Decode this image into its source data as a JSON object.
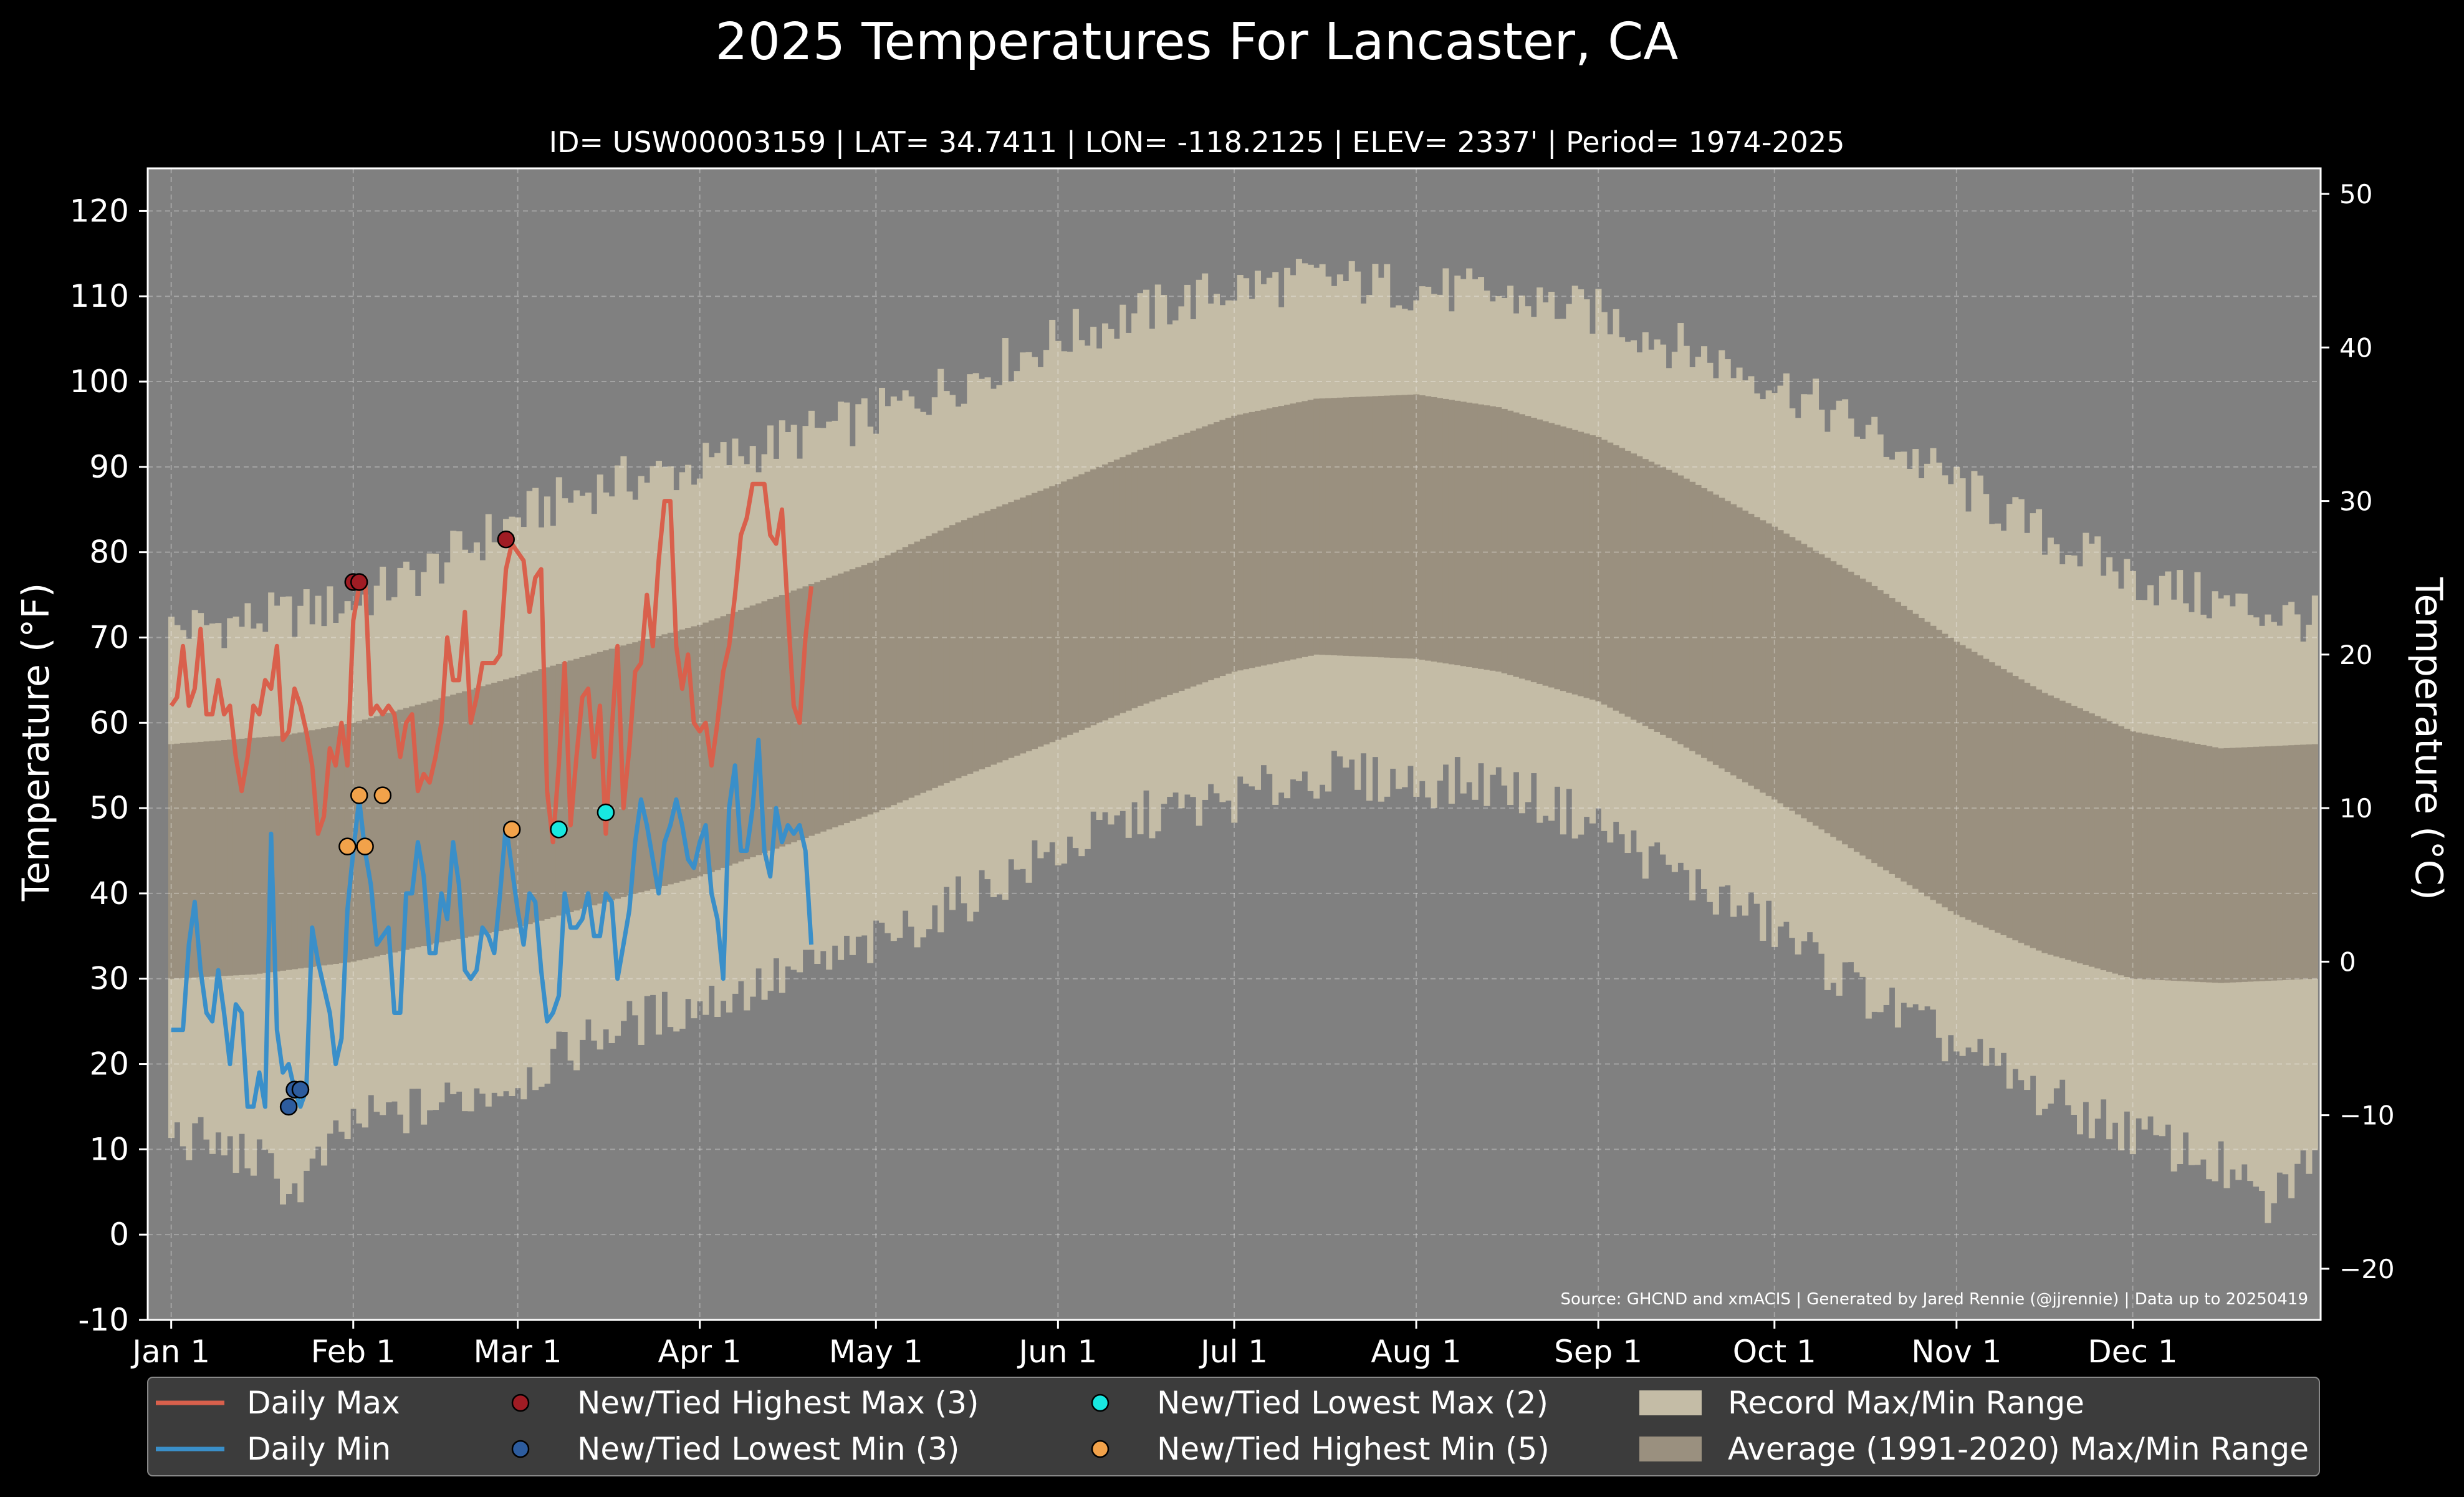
{
  "chart_data": {
    "type": "line",
    "title": "2025 Temperatures For Lancaster, CA",
    "subtitle": "ID= USW00003159 | LAT= 34.7411 | LON= -118.2125 | ELEV= 2337' | Period= 1974-2025",
    "ylabel_left": "Temperature (°F)",
    "ylabel_right": "Temperature (°C)",
    "source": "Source: GHCND and xmACIS | Generated by Jared Rennie (@jjrennie) | Data up to 20250419",
    "ylim_f": [
      -10,
      125
    ],
    "yticks_f": [
      -10,
      0,
      10,
      20,
      30,
      40,
      50,
      60,
      70,
      80,
      90,
      100,
      110,
      120
    ],
    "yticks_c": [
      -20,
      -10,
      0,
      10,
      20,
      30,
      40,
      50
    ],
    "xlim_day": [
      -3,
      367
    ],
    "month_ticks": [
      {
        "label": "Jan 1",
        "day": 1
      },
      {
        "label": "Feb 1",
        "day": 32
      },
      {
        "label": "Mar 1",
        "day": 60
      },
      {
        "label": "Apr 1",
        "day": 91
      },
      {
        "label": "May 1",
        "day": 121
      },
      {
        "label": "Jun 1",
        "day": 152
      },
      {
        "label": "Jul 1",
        "day": 182
      },
      {
        "label": "Aug 1",
        "day": 213
      },
      {
        "label": "Sep 1",
        "day": 244
      },
      {
        "label": "Oct 1",
        "day": 274
      },
      {
        "label": "Nov 1",
        "day": 305
      },
      {
        "label": "Dec 1",
        "day": 335
      }
    ],
    "grid": true,
    "colors": {
      "background": "#000000",
      "plot_bg": "#808080",
      "record_range": "#c4bca6",
      "normal_range": "#9a907f",
      "daily_max": "#d9604c",
      "daily_min": "#3a8fc9",
      "highest_max": "#a01c24",
      "lowest_min": "#2d5c9e",
      "lowest_max": "#18e8e0",
      "highest_min": "#f2a24a"
    },
    "record_max_anchors": [
      [
        1,
        71
      ],
      [
        15,
        72
      ],
      [
        32,
        74
      ],
      [
        45,
        78
      ],
      [
        60,
        84
      ],
      [
        75,
        88
      ],
      [
        91,
        90
      ],
      [
        105,
        93
      ],
      [
        121,
        96
      ],
      [
        135,
        100
      ],
      [
        152,
        105
      ],
      [
        166,
        108
      ],
      [
        182,
        111
      ],
      [
        196,
        112
      ],
      [
        213,
        111
      ],
      [
        227,
        110
      ],
      [
        244,
        108
      ],
      [
        258,
        104
      ],
      [
        274,
        100
      ],
      [
        290,
        94
      ],
      [
        305,
        88
      ],
      [
        320,
        82
      ],
      [
        335,
        77
      ],
      [
        350,
        74
      ],
      [
        366,
        72
      ]
    ],
    "record_min_anchors": [
      [
        1,
        12
      ],
      [
        15,
        9
      ],
      [
        22,
        5
      ],
      [
        32,
        13
      ],
      [
        45,
        15
      ],
      [
        60,
        18
      ],
      [
        75,
        24
      ],
      [
        91,
        27
      ],
      [
        105,
        30
      ],
      [
        121,
        34
      ],
      [
        135,
        39
      ],
      [
        152,
        45
      ],
      [
        166,
        49
      ],
      [
        182,
        51
      ],
      [
        196,
        54
      ],
      [
        213,
        53
      ],
      [
        227,
        53
      ],
      [
        244,
        48
      ],
      [
        258,
        42
      ],
      [
        274,
        36
      ],
      [
        290,
        28
      ],
      [
        305,
        22
      ],
      [
        320,
        16
      ],
      [
        335,
        12
      ],
      [
        350,
        8
      ],
      [
        358,
        3
      ],
      [
        366,
        10
      ]
    ],
    "normal_max_anchors": [
      [
        1,
        57.5
      ],
      [
        20,
        58.5
      ],
      [
        32,
        60
      ],
      [
        45,
        62.5
      ],
      [
        60,
        65.5
      ],
      [
        75,
        68.5
      ],
      [
        91,
        71.5
      ],
      [
        105,
        75
      ],
      [
        121,
        79
      ],
      [
        135,
        83.5
      ],
      [
        152,
        88
      ],
      [
        166,
        92
      ],
      [
        182,
        96
      ],
      [
        196,
        98
      ],
      [
        213,
        98.5
      ],
      [
        227,
        97
      ],
      [
        244,
        93.5
      ],
      [
        258,
        89
      ],
      [
        274,
        83
      ],
      [
        290,
        76.5
      ],
      [
        305,
        69.5
      ],
      [
        320,
        63.5
      ],
      [
        335,
        59
      ],
      [
        350,
        57
      ],
      [
        366,
        57.5
      ]
    ],
    "normal_min_anchors": [
      [
        1,
        30
      ],
      [
        15,
        30.5
      ],
      [
        32,
        32
      ],
      [
        45,
        34
      ],
      [
        60,
        36
      ],
      [
        75,
        39
      ],
      [
        91,
        42
      ],
      [
        105,
        45.5
      ],
      [
        121,
        49.5
      ],
      [
        135,
        53.5
      ],
      [
        152,
        58
      ],
      [
        166,
        62
      ],
      [
        182,
        66
      ],
      [
        196,
        68
      ],
      [
        213,
        67.5
      ],
      [
        227,
        66
      ],
      [
        244,
        62.5
      ],
      [
        258,
        57.5
      ],
      [
        274,
        51
      ],
      [
        290,
        44
      ],
      [
        305,
        37.5
      ],
      [
        320,
        33
      ],
      [
        335,
        30
      ],
      [
        350,
        29.5
      ],
      [
        366,
        30
      ]
    ],
    "series": [
      {
        "name": "Daily Max",
        "start_day": 1,
        "values": [
          62,
          63,
          69,
          62,
          64,
          71,
          61,
          61,
          65,
          61,
          62,
          56,
          52,
          56,
          62,
          61,
          65,
          64,
          69,
          58,
          59,
          64,
          62,
          59,
          55,
          47,
          49,
          57,
          55,
          60,
          55,
          72,
          76,
          77,
          61,
          62,
          61,
          62,
          61,
          56,
          60,
          61,
          52,
          54,
          53,
          56,
          60,
          70,
          65,
          65,
          73,
          60,
          63,
          67,
          67,
          67,
          68,
          78,
          81,
          80,
          79,
          73,
          77,
          78,
          52,
          46,
          55,
          67,
          48,
          56,
          63,
          64,
          56,
          62,
          47,
          59,
          69,
          50,
          57,
          66,
          67,
          75,
          69,
          79,
          86,
          86,
          69,
          64,
          68,
          60,
          59,
          60,
          55,
          60,
          66,
          69,
          75,
          82,
          84,
          88,
          88,
          88,
          82,
          81,
          85,
          73,
          62,
          60,
          70,
          76
        ]
      },
      {
        "name": "Daily Min",
        "start_day": 1,
        "values": [
          24,
          24,
          24,
          34,
          39,
          31,
          26,
          25,
          31,
          26,
          20,
          27,
          26,
          15,
          15,
          19,
          15,
          47,
          24,
          19,
          20,
          17,
          15,
          17,
          36,
          32,
          29,
          26,
          20,
          23,
          38,
          45,
          51,
          45,
          41,
          34,
          35,
          36,
          26,
          26,
          40,
          40,
          46,
          42,
          33,
          33,
          40,
          37,
          46,
          41,
          31,
          30,
          31,
          36,
          35,
          33,
          40,
          48,
          43,
          38,
          34,
          40,
          39,
          31,
          25,
          26,
          28,
          40,
          36,
          36,
          37,
          40,
          35,
          35,
          40,
          39,
          30,
          34,
          38,
          46,
          51,
          48,
          44,
          40,
          46,
          48,
          51,
          48,
          44,
          43,
          46,
          48,
          40,
          37,
          30,
          50,
          55,
          45,
          45,
          50,
          58,
          45,
          42,
          50,
          46,
          48,
          47,
          48,
          45,
          34
        ]
      }
    ],
    "markers": [
      {
        "name": "New/Tied Highest Max (3)",
        "points": [
          [
            32,
            76.5
          ],
          [
            33,
            76.5
          ],
          [
            58,
            81.5
          ]
        ]
      },
      {
        "name": "New/Tied Lowest Min (3)",
        "points": [
          [
            22,
            17
          ],
          [
            23,
            17
          ],
          [
            21,
            15
          ]
        ]
      },
      {
        "name": "New/Tied Lowest Max (2)",
        "points": [
          [
            67,
            47.5
          ],
          [
            75,
            49.5
          ]
        ]
      },
      {
        "name": "New/Tied Highest Min (5)",
        "points": [
          [
            31,
            45.5
          ],
          [
            33,
            51.5
          ],
          [
            34,
            45.5
          ],
          [
            37,
            51.5
          ],
          [
            59,
            47.5
          ]
        ]
      }
    ],
    "legend": {
      "placement": "bottom",
      "entries": [
        {
          "label": "Daily Max",
          "kind": "line",
          "color": "#d9604c"
        },
        {
          "label": "New/Tied Highest Max (3)",
          "kind": "marker",
          "color": "#a01c24"
        },
        {
          "label": "New/Tied Lowest Max (2)",
          "kind": "marker",
          "color": "#18e8e0"
        },
        {
          "label": "Record Max/Min Range",
          "kind": "patch",
          "color": "#c4bca6"
        },
        {
          "label": "Daily Min",
          "kind": "line",
          "color": "#3a8fc9"
        },
        {
          "label": "New/Tied Lowest Min (3)",
          "kind": "marker",
          "color": "#2d5c9e"
        },
        {
          "label": "New/Tied Highest Min (5)",
          "kind": "marker",
          "color": "#f2a24a"
        },
        {
          "label": "Average (1991-2020) Max/Min Range",
          "kind": "patch",
          "color": "#9a907f"
        }
      ]
    }
  }
}
